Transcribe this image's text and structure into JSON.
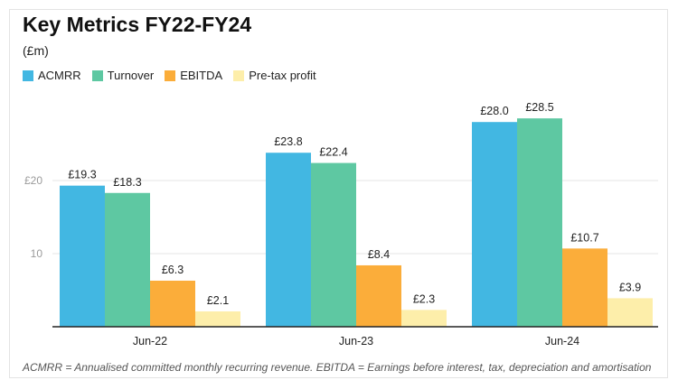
{
  "title": "Key Metrics FY22-FY24",
  "unit": "(£m)",
  "footnote": "ACMRR = Annualised committed monthly recurring revenue. EBITDA = Earnings before interest, tax, depreciation and amortisation",
  "chart_data": {
    "type": "bar",
    "categories": [
      "Jun-22",
      "Jun-23",
      "Jun-24"
    ],
    "series": [
      {
        "name": "ACMRR",
        "color": "#42b7e2",
        "values": [
          19.3,
          23.8,
          28.0
        ],
        "labels": [
          "£19.3",
          "£23.8",
          "£28.0"
        ]
      },
      {
        "name": "Turnover",
        "color": "#5ec8a2",
        "values": [
          18.3,
          22.4,
          28.5
        ],
        "labels": [
          "£18.3",
          "£22.4",
          "£28.5"
        ]
      },
      {
        "name": "EBITDA",
        "color": "#fbad3a",
        "values": [
          6.3,
          8.4,
          10.7
        ],
        "labels": [
          "£6.3",
          "£8.4",
          "£10.7"
        ]
      },
      {
        "name": "Pre-tax profit",
        "color": "#fdeeaa",
        "values": [
          2.1,
          2.3,
          3.9
        ],
        "labels": [
          "£2.1",
          "£2.3",
          "£3.9"
        ]
      }
    ],
    "yticks": [
      {
        "value": 10,
        "label": "10"
      },
      {
        "value": 20,
        "label": "£20"
      }
    ],
    "ylim": [
      0,
      30
    ],
    "grid": true,
    "legend": "top-left"
  }
}
